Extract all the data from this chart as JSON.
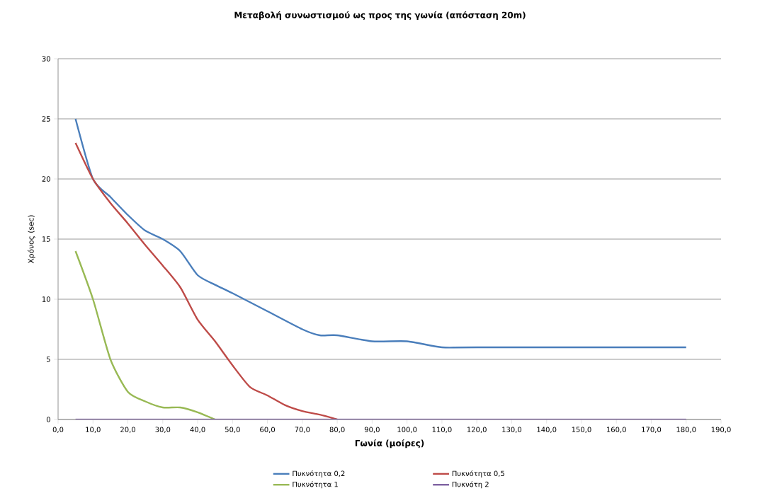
{
  "chart_data": {
    "type": "line",
    "title": "Μεταβολή συνωστισμού ως προς της γωνία (απόσταση 20m)",
    "xlabel": "Γωνία (μοίρες)",
    "ylabel": "Χρόνος (sec)",
    "xlim": [
      0,
      190
    ],
    "ylim": [
      0,
      30
    ],
    "xticks": [
      {
        "value": 0,
        "label": "0,0"
      },
      {
        "value": 10,
        "label": "10,0"
      },
      {
        "value": 20,
        "label": "20,0"
      },
      {
        "value": 30,
        "label": "30,0"
      },
      {
        "value": 40,
        "label": "40,0"
      },
      {
        "value": 50,
        "label": "50,0"
      },
      {
        "value": 60,
        "label": "60,0"
      },
      {
        "value": 70,
        "label": "70,0"
      },
      {
        "value": 80,
        "label": "80,0"
      },
      {
        "value": 90,
        "label": "90,0"
      },
      {
        "value": 100,
        "label": "100,0"
      },
      {
        "value": 110,
        "label": "110,0"
      },
      {
        "value": 120,
        "label": "120,0"
      },
      {
        "value": 130,
        "label": "130,0"
      },
      {
        "value": 140,
        "label": "140,0"
      },
      {
        "value": 150,
        "label": "150,0"
      },
      {
        "value": 160,
        "label": "160,0"
      },
      {
        "value": 170,
        "label": "170,0"
      },
      {
        "value": 180,
        "label": "180,0"
      },
      {
        "value": 190,
        "label": "190,0"
      }
    ],
    "yticks": [
      0,
      5,
      10,
      15,
      20,
      25,
      30
    ],
    "grid": "y",
    "legend": "bottom",
    "series": [
      {
        "name": "Πυκνότητα 0,2",
        "color": "#4a7ebb",
        "x": [
          5,
          10,
          15,
          20,
          25,
          30,
          35,
          40,
          45,
          50,
          60,
          70,
          75,
          80,
          90,
          100,
          110,
          120,
          180
        ],
        "values": [
          25,
          20,
          18.5,
          17,
          15.7,
          15,
          14,
          12,
          11.2,
          10.5,
          9,
          7.5,
          7,
          7,
          6.5,
          6.5,
          6,
          6,
          6
        ]
      },
      {
        "name": "Πυκνότητα 0,5",
        "color": "#be4b48",
        "x": [
          5,
          10,
          15,
          20,
          25,
          30,
          35,
          40,
          45,
          50,
          55,
          60,
          65,
          70,
          75,
          80
        ],
        "values": [
          23,
          20,
          18,
          16.3,
          14.5,
          12.8,
          11,
          8.3,
          6.5,
          4.5,
          2.7,
          2,
          1.2,
          0.7,
          0.4,
          0
        ]
      },
      {
        "name": "Πυκνότητα 1",
        "color": "#98b954",
        "x": [
          5,
          10,
          15,
          20,
          25,
          30,
          35,
          40,
          45
        ],
        "values": [
          14,
          10,
          5,
          2.3,
          1.5,
          1,
          1,
          0.6,
          0
        ]
      },
      {
        "name": "Πυκνότη 2",
        "color": "#7d60a0",
        "x": [
          5,
          180
        ],
        "values": [
          0,
          0
        ]
      }
    ]
  }
}
